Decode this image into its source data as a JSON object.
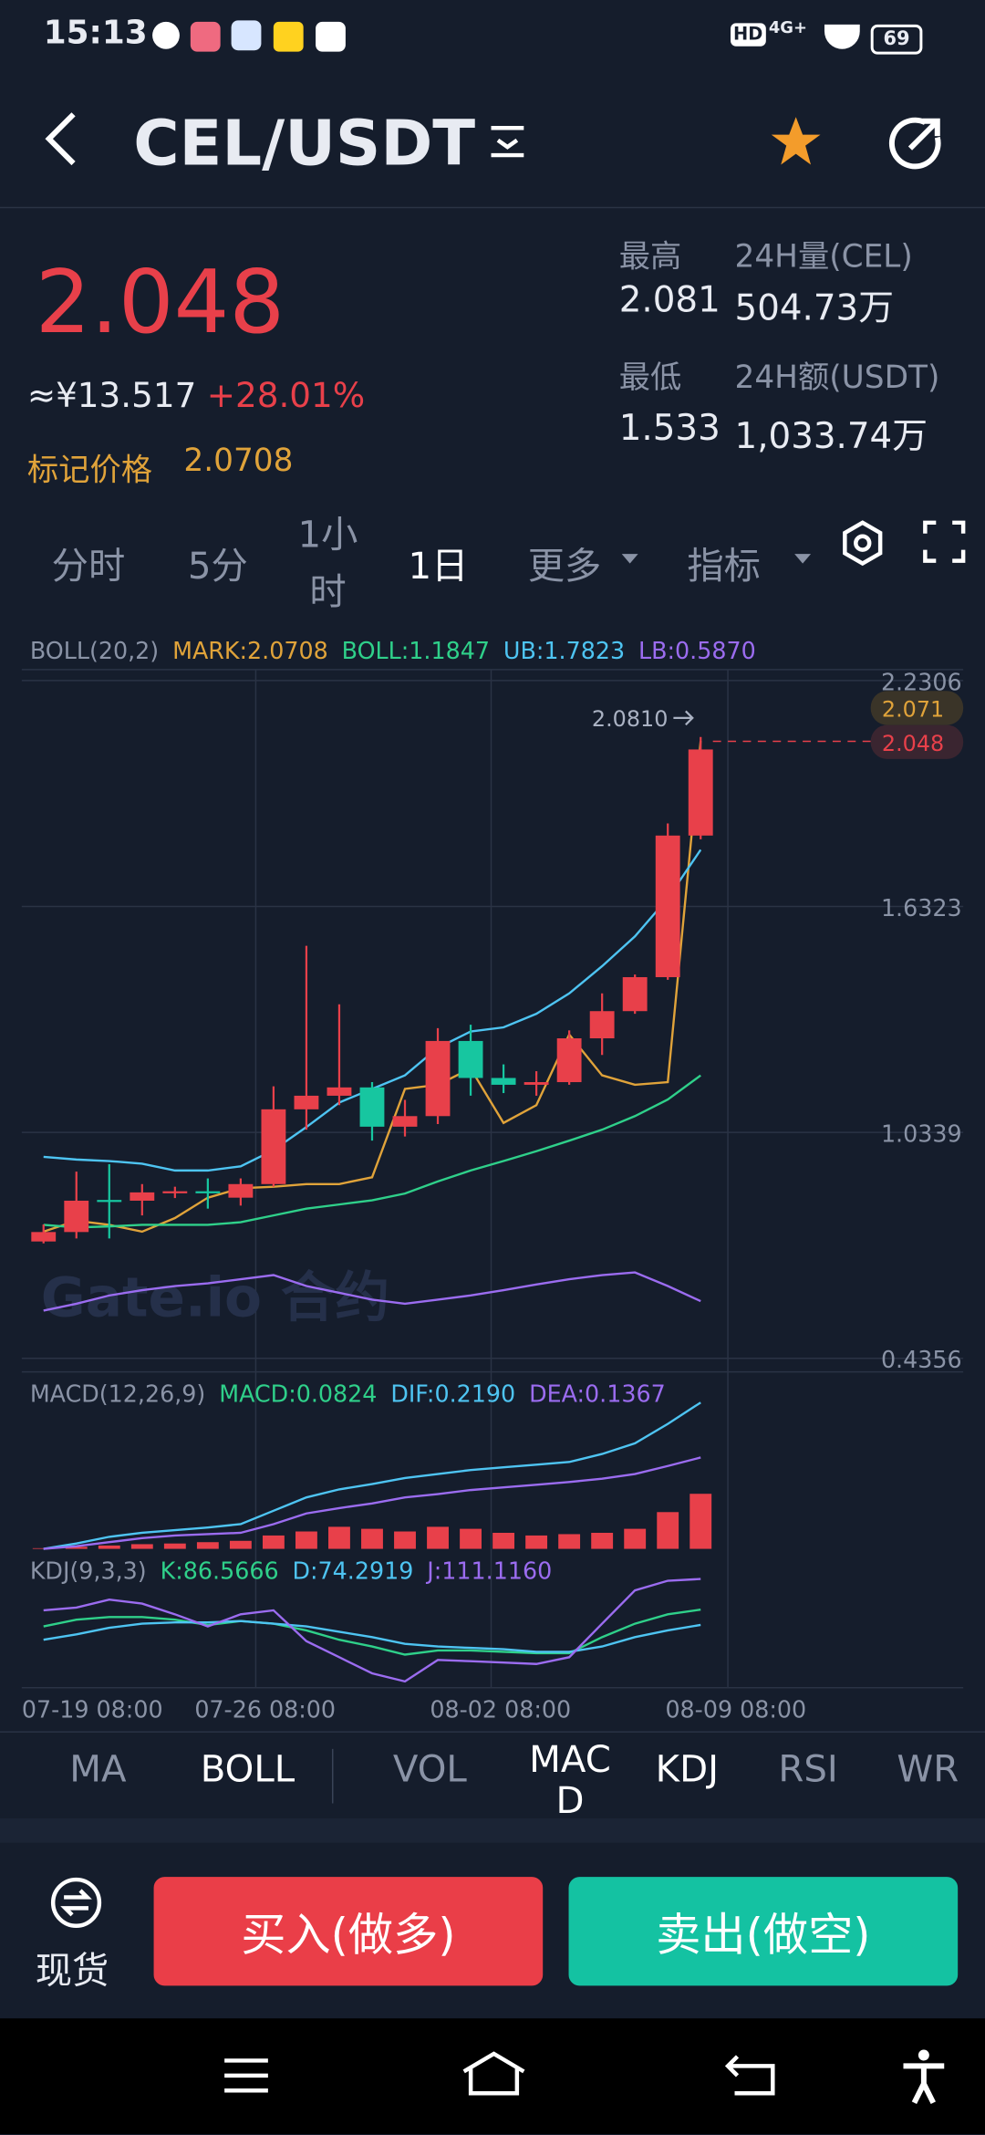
{
  "status_bar": {
    "time": "15:13",
    "hd": "HD",
    "network": "4G+",
    "battery": "69"
  },
  "header": {
    "title": "CEL/USDT"
  },
  "ticker": {
    "price": "2.048",
    "cny": "≈¥13.517",
    "change": "+28.01%",
    "mark_label": "标记价格",
    "mark_price": "2.0708",
    "stats": [
      {
        "label": "最高",
        "value": "2.081",
        "vol_label": "24H量(CEL)",
        "vol_value": "504.73万"
      },
      {
        "label": "最低",
        "value": "1.533",
        "vol_label": "24H额(USDT)",
        "vol_value": "1,033.74万"
      }
    ]
  },
  "intervals": [
    "分时",
    "5分",
    "1小时",
    "1日",
    "更多",
    "指标"
  ],
  "chart_data": [
    {
      "type": "candlestick",
      "legend": [
        "BOLL(20,2)",
        "MARK:2.0708",
        "BOLL:1.1847",
        "UB:1.7823",
        "LB:0.5870"
      ],
      "watermark": "Gate.io 合约",
      "up_color": "#e8404a",
      "down_color": "#17c6a0",
      "open": [
        0.745,
        0.77,
        0.855,
        0.853,
        0.874,
        0.878,
        0.861,
        0.897,
        1.095,
        1.131,
        1.153,
        1.049,
        1.077,
        1.276,
        1.178,
        1.16,
        1.167,
        1.283,
        1.355,
        1.445,
        1.82
      ],
      "high": [
        0.79,
        0.93,
        0.95,
        0.897,
        0.89,
        0.912,
        0.912,
        1.156,
        1.528,
        1.373,
        1.167,
        1.12,
        1.31,
        1.319,
        1.214,
        1.196,
        1.304,
        1.402,
        1.452,
        1.852,
        2.081
      ],
      "low": [
        0.74,
        0.753,
        0.753,
        0.814,
        0.86,
        0.832,
        0.84,
        0.89,
        1.041,
        1.106,
        1.012,
        1.023,
        1.056,
        1.131,
        1.138,
        1.131,
        1.16,
        1.239,
        1.348,
        1.438,
        1.81
      ],
      "close": [
        0.77,
        0.853,
        0.853,
        0.875,
        0.878,
        0.876,
        0.897,
        1.095,
        1.131,
        1.153,
        1.049,
        1.077,
        1.276,
        1.178,
        1.16,
        1.167,
        1.283,
        1.355,
        1.445,
        1.82,
        2.048
      ],
      "series": [
        {
          "color": "#e0a33a",
          "values": [
            0.771,
            0.8,
            0.789,
            0.771,
            0.807,
            0.861,
            0.886,
            0.89,
            0.897,
            0.897,
            0.915,
            1.149,
            1.16,
            1.203,
            1.059,
            1.106,
            1.293,
            1.185,
            1.16,
            1.167,
            2.0708
          ]
        },
        {
          "color": "#4ec4f2",
          "values": [
            0.969,
            0.962,
            0.958,
            0.951,
            0.933,
            0.933,
            0.944,
            0.987,
            1.048,
            1.113,
            1.149,
            1.185,
            1.258,
            1.301,
            1.312,
            1.348,
            1.402,
            1.474,
            1.553,
            1.654,
            1.7823
          ]
        },
        {
          "color": "#2fd08a",
          "values": [
            0.789,
            0.782,
            0.785,
            0.789,
            0.789,
            0.789,
            0.796,
            0.814,
            0.832,
            0.843,
            0.854,
            0.872,
            0.904,
            0.933,
            0.958,
            0.984,
            1.012,
            1.041,
            1.077,
            1.121,
            1.1847
          ]
        },
        {
          "color": "#9b6cf0",
          "values": [
            0.562,
            0.58,
            0.602,
            0.616,
            0.627,
            0.634,
            0.645,
            0.656,
            0.627,
            0.609,
            0.591,
            0.58,
            0.591,
            0.602,
            0.616,
            0.631,
            0.645,
            0.656,
            0.663,
            0.627,
            0.587
          ]
        }
      ],
      "ylim": [
        0.4356,
        2.2306
      ],
      "yticks": [
        2.2306,
        1.6323,
        1.0339,
        0.4356
      ],
      "high_marker": {
        "value": 2.081,
        "label": "2.0810"
      },
      "mark_badge": 2.071,
      "last_badge": 2.048,
      "x_labels": [
        "07-19 08:00",
        "07-26 08:00",
        "08-02 08:00",
        "08-09 08:00"
      ]
    },
    {
      "type": "macd",
      "legend": [
        "MACD(12,26,9)",
        "MACD:0.0824",
        "DIF:0.2190",
        "DEA:0.1367"
      ],
      "color": "#e8404a",
      "values": [
        0.001,
        0.003,
        0.005,
        0.007,
        0.008,
        0.01,
        0.012,
        0.02,
        0.026,
        0.033,
        0.03,
        0.026,
        0.033,
        0.03,
        0.024,
        0.02,
        0.022,
        0.024,
        0.03,
        0.055,
        0.0824
      ],
      "series": [
        {
          "color": "#4ec4f2",
          "values": [
            0,
            0.008,
            0.018,
            0.024,
            0.028,
            0.032,
            0.037,
            0.057,
            0.077,
            0.089,
            0.097,
            0.106,
            0.112,
            0.118,
            0.122,
            0.126,
            0.13,
            0.142,
            0.158,
            0.187,
            0.219
          ]
        },
        {
          "color": "#9b6cf0",
          "values": [
            0,
            0.004,
            0.01,
            0.016,
            0.02,
            0.022,
            0.024,
            0.037,
            0.053,
            0.061,
            0.068,
            0.077,
            0.082,
            0.088,
            0.092,
            0.096,
            0.1,
            0.105,
            0.112,
            0.124,
            0.1367
          ]
        }
      ],
      "ylim": [
        0,
        0.22
      ]
    },
    {
      "type": "line",
      "legend": [
        "KDJ(9,3,3)",
        "K:86.5666",
        "D:74.2919",
        "J:111.1160"
      ],
      "series": [
        {
          "color": "#2fd08a",
          "values": [
            73.1,
            78.5,
            80.6,
            80.6,
            78.5,
            74.2,
            77.4,
            75.3,
            69.9,
            62.4,
            57,
            50.5,
            53.8,
            53.8,
            52.7,
            51.6,
            51.6,
            64.5,
            75.3,
            82.8,
            86.5666
          ]
        },
        {
          "color": "#4ec4f2",
          "values": [
            62.4,
            66.7,
            72,
            75.3,
            76.3,
            76.3,
            77.4,
            75.3,
            73.1,
            68.8,
            64.5,
            59.1,
            57,
            55.9,
            54.8,
            52.7,
            52.7,
            57,
            64.5,
            69.9,
            74.2919
          ]
        },
        {
          "color": "#9b6cf0",
          "values": [
            86,
            88.2,
            94.6,
            91.4,
            82.8,
            73.1,
            82.8,
            86,
            61.3,
            48.4,
            35.5,
            29,
            46.2,
            45.2,
            44.1,
            43,
            48.4,
            75.3,
            102,
            109.7,
            111.116
          ]
        }
      ],
      "ylim": [
        0,
        120
      ]
    }
  ],
  "indicator_tabs": [
    "MA",
    "BOLL",
    "VOL",
    "MACD",
    "KDJ",
    "RSI",
    "WR"
  ],
  "footer": {
    "spot": "现货",
    "buy": "买入(做多)",
    "sell": "卖出(做空)"
  }
}
